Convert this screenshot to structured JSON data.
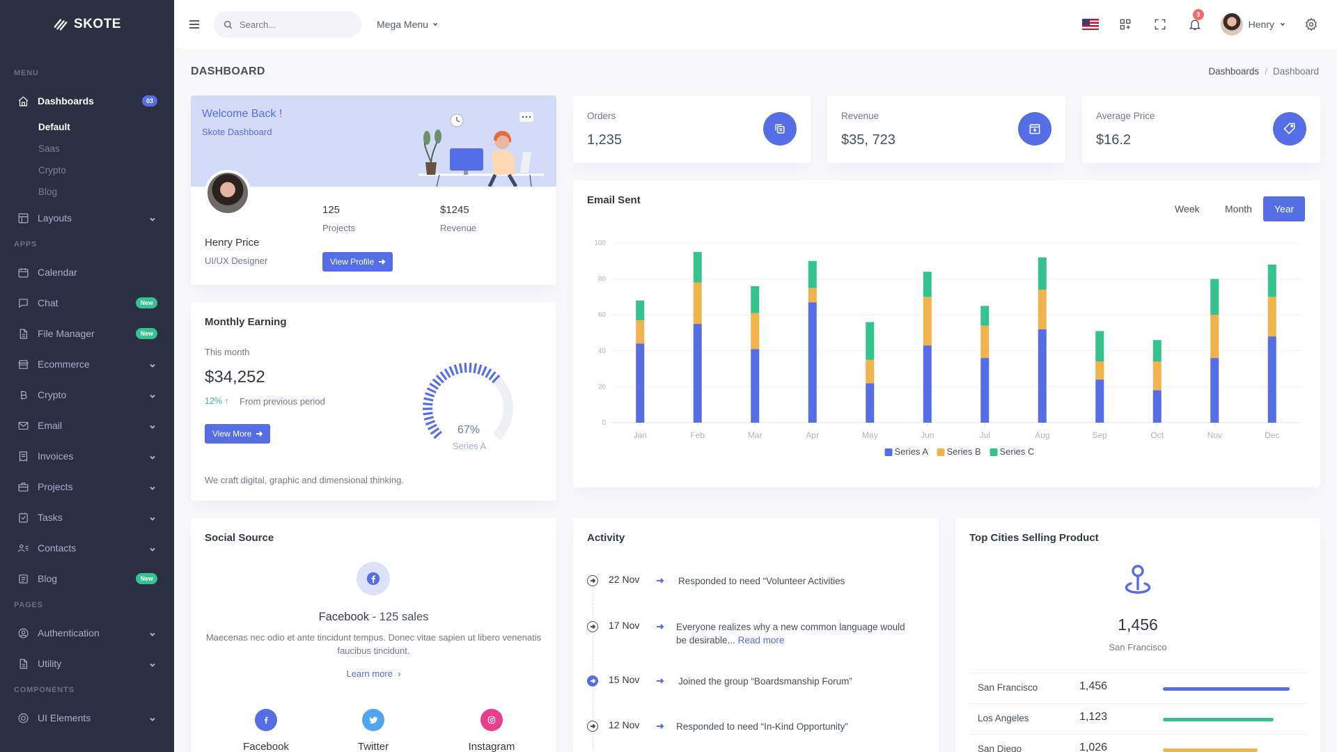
{
  "brand": {
    "name": "SKOTE"
  },
  "sidebar": {
    "sections": {
      "menu": "MENU",
      "apps": "APPS",
      "pages": "PAGES",
      "components": "COMPONENTS"
    },
    "dashboards": {
      "label": "Dashboards",
      "badge": "03",
      "sub": [
        "Default",
        "Saas",
        "Crypto",
        "Blog"
      ]
    },
    "layouts": "Layouts",
    "apps": [
      {
        "label": "Calendar"
      },
      {
        "label": "Chat",
        "badge": "New"
      },
      {
        "label": "File Manager",
        "badge": "New"
      },
      {
        "label": "Ecommerce"
      },
      {
        "label": "Crypto"
      },
      {
        "label": "Email"
      },
      {
        "label": "Invoices"
      },
      {
        "label": "Projects"
      },
      {
        "label": "Tasks"
      },
      {
        "label": "Contacts"
      },
      {
        "label": "Blog",
        "badge": "New"
      }
    ],
    "pages": [
      "Authentication",
      "Utility"
    ],
    "components": [
      "UI Elements"
    ]
  },
  "topbar": {
    "search_placeholder": "Search...",
    "mega_menu": "Mega Menu",
    "notification_count": "3",
    "user_name": "Henry"
  },
  "page": {
    "title": "DASHBOARD",
    "breadcrumb": [
      "Dashboards",
      "Dashboard"
    ]
  },
  "welcome": {
    "title": "Welcome Back !",
    "subtitle": "Skote Dashboard",
    "name": "Henry Price",
    "role": "UI/UX Designer",
    "projects_value": "125",
    "projects_label": "Projects",
    "revenue_value": "$1245",
    "revenue_label": "Revenue",
    "button": "View Profile"
  },
  "stats": [
    {
      "label": "Orders",
      "value": "1,235",
      "icon": "copy-icon"
    },
    {
      "label": "Revenue",
      "value": "$35, 723",
      "icon": "archive-icon"
    },
    {
      "label": "Average Price",
      "value": "$16.2",
      "icon": "tag-icon"
    }
  ],
  "monthly": {
    "title": "Monthly Earning",
    "period_label": "This month",
    "value": "$34,252",
    "change": "12%",
    "change_text": "From previous period",
    "button": "View More",
    "gauge_percent": 67,
    "gauge_label": "67%",
    "gauge_series": "Series A",
    "footer": "We craft digital, graphic and dimensional thinking."
  },
  "email": {
    "title": "Email Sent",
    "ranges": [
      "Week",
      "Month",
      "Year"
    ],
    "active_range": "Year"
  },
  "chart_data": {
    "type": "bar",
    "stacked": true,
    "categories": [
      "Jan",
      "Feb",
      "Mar",
      "Apr",
      "May",
      "Jun",
      "Jul",
      "Aug",
      "Sep",
      "Oct",
      "Nov",
      "Dec"
    ],
    "series": [
      {
        "name": "Series A",
        "color": "#556ee6",
        "values": [
          44,
          55,
          41,
          67,
          22,
          43,
          36,
          52,
          24,
          18,
          36,
          48
        ]
      },
      {
        "name": "Series B",
        "color": "#f1b44c",
        "values": [
          13,
          23,
          20,
          8,
          13,
          27,
          18,
          22,
          10,
          16,
          24,
          22
        ]
      },
      {
        "name": "Series C",
        "color": "#34c38f",
        "values": [
          11,
          17,
          15,
          15,
          21,
          14,
          11,
          18,
          17,
          12,
          20,
          18
        ]
      }
    ],
    "ylim": [
      0,
      100
    ],
    "yticks": [
      0,
      20,
      40,
      60,
      80,
      100
    ],
    "legend": "bottom-center",
    "grid": true
  },
  "social": {
    "title": "Social Source",
    "featured_name": "Facebook",
    "featured_sales": "125 sales",
    "description": "Maecenas nec odio et ante tincidunt tempus. Donec vitae sapien ut libero venenatis faucibus tincidunt.",
    "learn_more": "Learn more",
    "items": [
      {
        "label": "Facebook",
        "color": "#556ee6",
        "icon": "facebook-icon"
      },
      {
        "label": "Twitter",
        "color": "#50a5f1",
        "icon": "twitter-icon"
      },
      {
        "label": "Instagram",
        "color": "#e83e8c",
        "icon": "instagram-icon"
      }
    ]
  },
  "activity": {
    "title": "Activity",
    "items": [
      {
        "date": "22 Nov",
        "text": "Responded to need “Volunteer Activities"
      },
      {
        "date": "17 Nov",
        "text": "Everyone realizes why a new common language would be desirable...",
        "link": "Read more"
      },
      {
        "date": "15 Nov",
        "text": "Joined the group “Boardsmanship Forum”"
      },
      {
        "date": "12 Nov",
        "text": "Responded to need “In-Kind Opportunity”"
      }
    ]
  },
  "cities": {
    "title": "Top Cities Selling Product",
    "top_value": "1,456",
    "top_city": "San Francisco",
    "rows": [
      {
        "name": "San Francisco",
        "value": "1,456",
        "pct": 0.94,
        "color": "#556ee6"
      },
      {
        "name": "Los Angeles",
        "value": "1,123",
        "pct": 0.82,
        "color": "#34c38f"
      },
      {
        "name": "San Diego",
        "value": "1,026",
        "pct": 0.7,
        "color": "#f1b44c"
      }
    ]
  }
}
